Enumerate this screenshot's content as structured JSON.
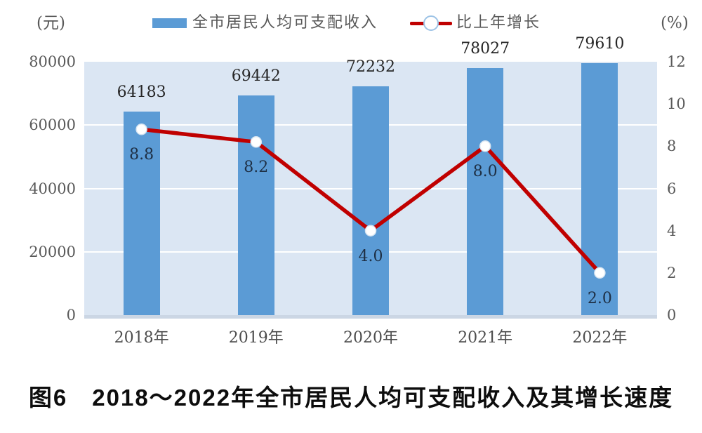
{
  "axes": {
    "left_unit": "(元)",
    "right_unit": "(%)"
  },
  "legend": {
    "bar_label": "全市居民人均可支配收入",
    "line_label": "比上年增长"
  },
  "caption": "图6　2018～2022年全市居民人均可支配收入及其增长速度",
  "colors": {
    "bar": "#5b9bd5",
    "line": "#c00000",
    "marker_fill": "#ffffff",
    "marker_edge": "#d9e6f2",
    "plot_background": "#dbe6f3",
    "gridline": "#ffffff",
    "axis_strip": "#cbd6e4"
  },
  "chart_data": {
    "type": "bar+line",
    "title": "图6　2018～2022年全市居民人均可支配收入及其增长速度",
    "categories": [
      "2018年",
      "2019年",
      "2020年",
      "2021年",
      "2022年"
    ],
    "series": [
      {
        "name": "全市居民人均可支配收入",
        "type": "bar",
        "axis": "left",
        "unit": "元",
        "values": [
          64183,
          69442,
          72232,
          78027,
          79610
        ]
      },
      {
        "name": "比上年增长",
        "type": "line",
        "axis": "right",
        "unit": "%",
        "values": [
          8.8,
          8.2,
          4.0,
          8.0,
          2.0
        ]
      }
    ],
    "left_axis": {
      "label": "(元)",
      "range": [
        0,
        80000
      ],
      "ticks": [
        0,
        20000,
        40000,
        60000,
        80000
      ]
    },
    "right_axis": {
      "label": "(%)",
      "range": [
        0,
        12
      ],
      "ticks": [
        0,
        2,
        4,
        6,
        8,
        10,
        12
      ]
    },
    "grid": "horizontal-white-lines-at-left-ticks",
    "legend_position": "top-center"
  }
}
